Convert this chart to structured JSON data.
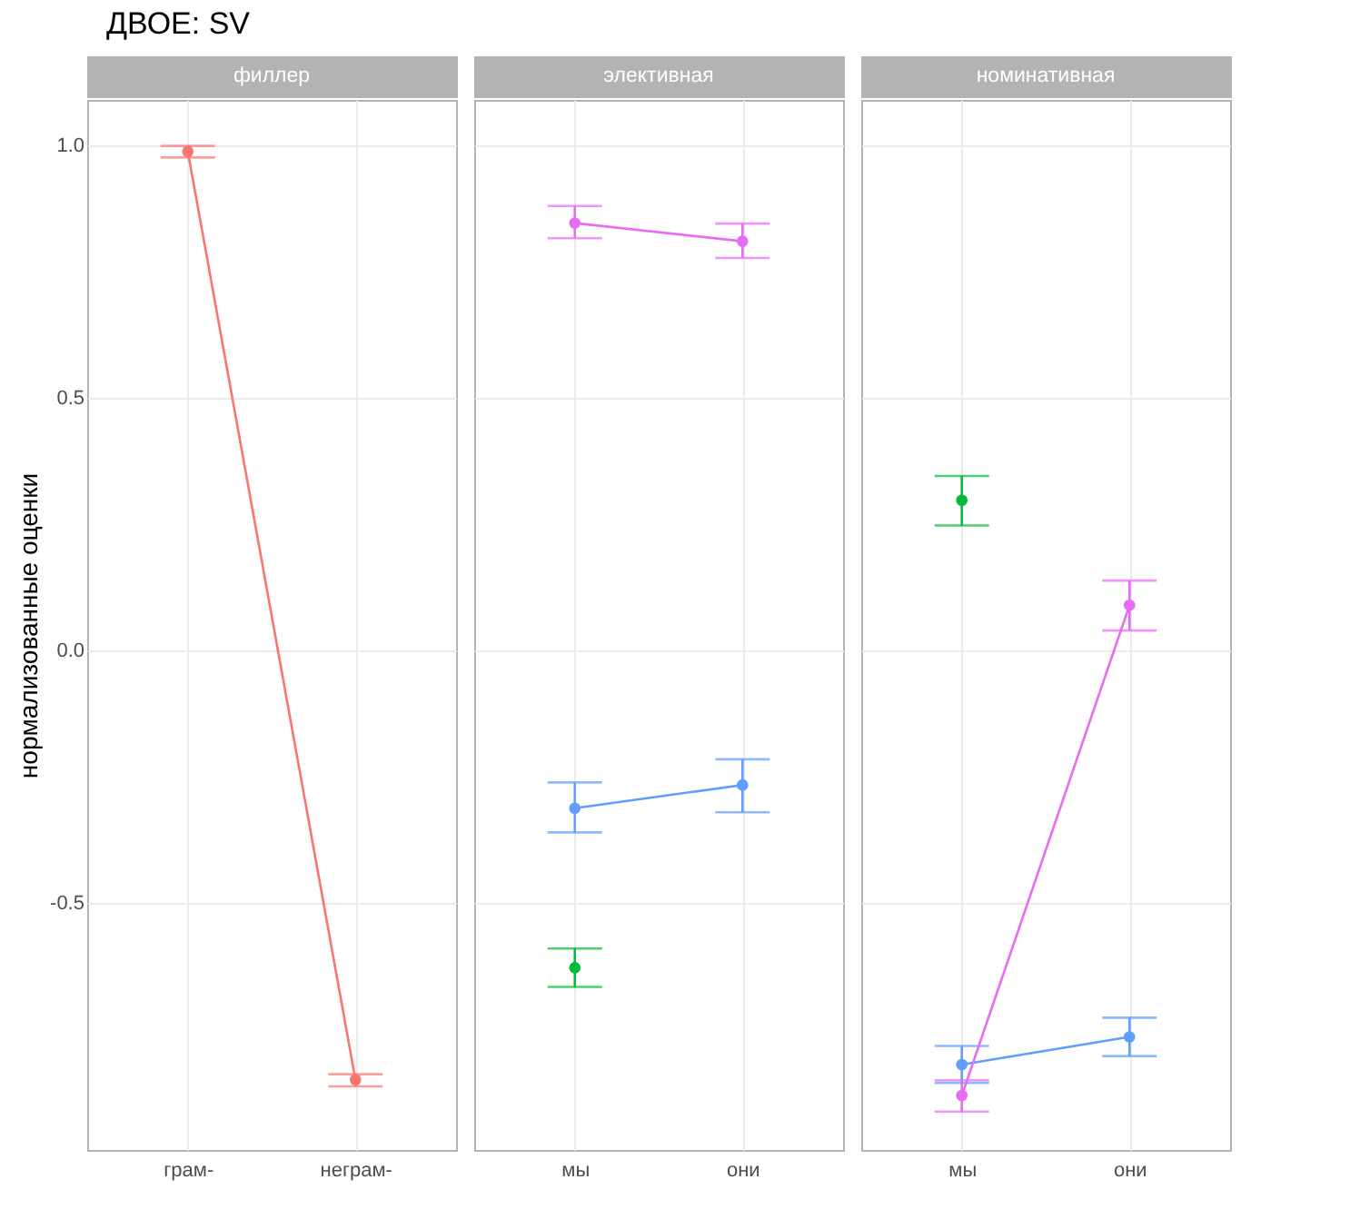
{
  "chart_data": [
    {
      "type": "line",
      "title": "ДВОЕ: SV",
      "subtitle": "филлер",
      "ylabel": "нормализованные оценки",
      "categories": [
        "грам-",
        "неграм-"
      ],
      "ylim": [
        -0.99,
        1.09
      ],
      "yticks": [
        {
          "value": -0.5,
          "label": "-0.5"
        },
        {
          "value": 0,
          "label": "0.0"
        },
        {
          "value": 0.5,
          "label": "0.5"
        },
        {
          "value": 1,
          "label": "1.0"
        }
      ],
      "grid": true,
      "marker": "circle",
      "line_style": "solid",
      "series": [
        {
          "color": "#f8766d",
          "values": [
            0.988,
            -0.851
          ],
          "errors": [
            [
              0.976,
              0.999
            ],
            [
              -0.864,
              -0.84
            ]
          ]
        }
      ]
    },
    {
      "type": "line",
      "subtitle": "элективная",
      "categories": [
        "мы",
        "они"
      ],
      "ylim": [
        -0.99,
        1.09
      ],
      "yticks": [
        -0.5,
        0,
        0.5,
        1
      ],
      "tick_labels": "x",
      "grid": true,
      "marker": "circle",
      "line_style": "solid",
      "series": [
        {
          "type": "scatter",
          "color": "#00ba38",
          "values": [
            -0.629,
            null
          ],
          "errors": [
            [
              -0.667,
              -0.591
            ],
            null
          ]
        },
        {
          "color": "#619cff",
          "values": [
            -0.313,
            -0.267
          ],
          "errors": [
            [
              -0.361,
              -0.262
            ],
            [
              -0.321,
              -0.216
            ]
          ]
        },
        {
          "color": "#e76bf3",
          "values": [
            0.846,
            0.81
          ],
          "errors": [
            [
              0.816,
              0.88
            ],
            [
              0.777,
              0.845
            ]
          ]
        }
      ]
    },
    {
      "type": "line",
      "subtitle": "номинативная",
      "categories": [
        "мы",
        "они"
      ],
      "ylim": [
        -0.99,
        1.09
      ],
      "yticks": [
        -0.5,
        0,
        0.5,
        1
      ],
      "tick_labels": "x",
      "grid": true,
      "marker": "circle",
      "line_style": "solid",
      "series": [
        {
          "type": "scatter",
          "color": "#00ba38",
          "values": [
            0.297,
            null
          ],
          "errors": [
            [
              0.247,
              0.345
            ],
            null
          ]
        },
        {
          "color": "#619cff",
          "values": [
            -0.821,
            -0.766
          ],
          "errors": [
            [
              -0.857,
              -0.784
            ],
            [
              -0.804,
              -0.728
            ]
          ]
        },
        {
          "color": "#e76bf3",
          "values": [
            -0.882,
            0.089
          ],
          "errors": [
            [
              -0.914,
              -0.852
            ],
            [
              0.039,
              0.138
            ]
          ]
        }
      ]
    }
  ]
}
